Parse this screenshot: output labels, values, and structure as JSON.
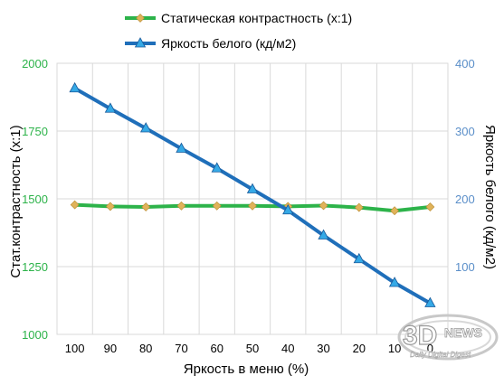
{
  "chart_data": {
    "type": "line",
    "categories": [
      "100",
      "90",
      "80",
      "70",
      "60",
      "50",
      "40",
      "30",
      "20",
      "10",
      "0"
    ],
    "xlabel": "Яркость в меню (%)",
    "ylabel_left": "Стат.контрастность  (x:1)",
    "ylabel_right": "Яркость белого (кд/м2)",
    "ylim_left": [
      1000,
      2000
    ],
    "ylim_right": [
      0,
      400
    ],
    "yticks_left": [
      1000,
      1250,
      1500,
      1750,
      2000
    ],
    "yticks_right": [
      100,
      200,
      300,
      400
    ],
    "grid": true,
    "legend_position": "top-center",
    "series": [
      {
        "name": "Статическая контрастность (x:1)",
        "axis": "left",
        "color": "#2db34a",
        "marker_color": "#e0b35a",
        "marker": "diamond",
        "values": [
          1478,
          1472,
          1470,
          1474,
          1474,
          1474,
          1472,
          1475,
          1468,
          1456,
          1470
        ]
      },
      {
        "name": "Яркость белого (кд/м2)",
        "axis": "right",
        "color": "#1f6fba",
        "marker_color": "#35a9e6",
        "marker": "triangle",
        "values": [
          363,
          333,
          304,
          274,
          245,
          214,
          183,
          146,
          111,
          76,
          46
        ]
      }
    ],
    "left_axis_color": "#2db34a",
    "right_axis_color": "#5b8fc9"
  },
  "watermark": {
    "brand": "3DNEWS",
    "tagline": "Daily Digital Digest"
  }
}
